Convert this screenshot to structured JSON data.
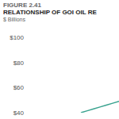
{
  "chart_data": {
    "type": "line",
    "annotations": [
      "FIGURE 2.41"
    ],
    "title": "RELATIONSHIP OF GOI OIL RE",
    "subtitle": "$ Billions",
    "categories": [
      null,
      null,
      null,
      null,
      null,
      null,
      null,
      null
    ],
    "values": [
      null,
      null,
      null,
      null,
      40,
      43,
      46,
      49
    ],
    "color": "#3aa38f",
    "ylim": [
      40,
      100
    ],
    "yticks": [
      {
        "value": 40,
        "label": "$40"
      },
      {
        "value": 60,
        "label": "$60"
      },
      {
        "value": 80,
        "label": "$80"
      },
      {
        "value": 100,
        "label": "$100"
      }
    ],
    "tick_labels": "y"
  }
}
